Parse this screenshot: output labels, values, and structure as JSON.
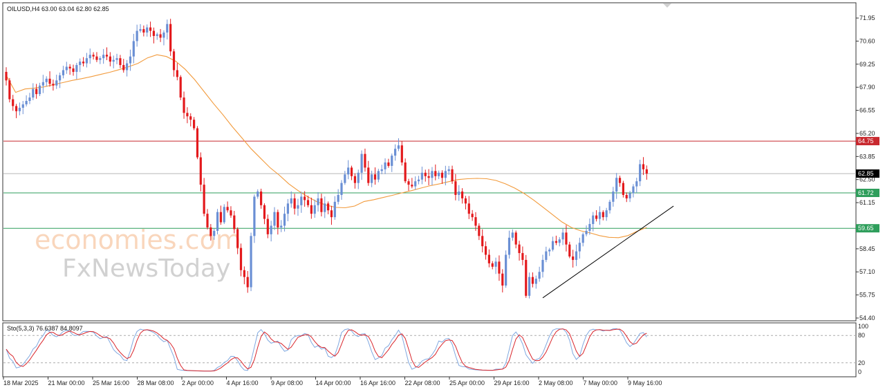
{
  "chart_data": {
    "type": "candlestick",
    "symbol_info": "OILUSD,H4  63.00 63.04 62.80 62.85",
    "ohlc_last": {
      "open": 63.0,
      "high": 63.04,
      "low": 62.8,
      "close": 62.85
    },
    "price_ticks": [
      "71.95",
      "70.60",
      "69.25",
      "67.90",
      "66.55",
      "65.20",
      "63.85",
      "62.50",
      "61.15",
      "58.45",
      "57.10",
      "55.75",
      "54.40"
    ],
    "ylim": [
      54.4,
      72.6
    ],
    "x_labels": [
      "18 Mar 2025",
      "21 Mar 00:00",
      "25 Mar 16:00",
      "28 Mar 08:00",
      "2 Apr 00:00",
      "4 Apr 16:00",
      "9 Apr 08:00",
      "14 Apr 00:00",
      "16 Apr 16:00",
      "22 Apr 08:00",
      "25 Apr 00:00",
      "29 Apr 16:00",
      "2 May 08:00",
      "7 May 00:00",
      "9 May 16:00"
    ],
    "levels": [
      {
        "value": 64.75,
        "label": "64.75",
        "color": "#c8282e"
      },
      {
        "value": 61.72,
        "label": "61.72",
        "color": "#2e9e5b"
      },
      {
        "value": 59.65,
        "label": "59.65",
        "color": "#2e9e5b"
      }
    ],
    "current_price": {
      "value": 62.85,
      "label": "62.85"
    },
    "closes": [
      68.3,
      67.2,
      66.8,
      66.5,
      66.7,
      66.9,
      67.1,
      67.3,
      67.8,
      67.5,
      68.0,
      68.2,
      68.4,
      68.1,
      68.0,
      68.3,
      68.6,
      68.9,
      69.1,
      69.0,
      68.8,
      69.2,
      69.4,
      69.3,
      69.6,
      69.8,
      69.7,
      69.5,
      69.6,
      69.8,
      69.7,
      69.4,
      69.5,
      69.6,
      69.2,
      68.9,
      69.3,
      69.7,
      70.6,
      71.2,
      71.3,
      71.1,
      71.4,
      71.2,
      70.9,
      71.0,
      70.8,
      71.1,
      71.6,
      70.0,
      68.9,
      68.5,
      67.3,
      66.4,
      66.2,
      66.0,
      65.5,
      63.8,
      62.2,
      60.5,
      59.7,
      59.2,
      59.5,
      60.6,
      60.0,
      60.9,
      60.7,
      60.4,
      59.6,
      58.5,
      57.2,
      56.8,
      56.2,
      59.2,
      61.5,
      61.8,
      61.0,
      60.2,
      59.3,
      59.8,
      60.6,
      59.7,
      59.8,
      60.5,
      61.1,
      61.4,
      60.8,
      61.0,
      61.5,
      61.3,
      61.0,
      60.5,
      61.0,
      61.4,
      60.6,
      61.1,
      60.7,
      60.3,
      61.2,
      61.6,
      62.3,
      62.8,
      63.2,
      62.7,
      62.3,
      62.9,
      64.0,
      63.2,
      62.3,
      62.8,
      62.5,
      63.0,
      63.1,
      63.5,
      63.3,
      63.9,
      64.3,
      64.5,
      63.5,
      62.4,
      62.2,
      62.1,
      62.4,
      62.5,
      62.9,
      62.7,
      62.6,
      63.0,
      62.7,
      62.9,
      62.6,
      63.0,
      63.1,
      62.4,
      61.6,
      61.8,
      61.4,
      61.1,
      60.5,
      60.3,
      59.8,
      59.2,
      58.6,
      58.1,
      57.6,
      57.4,
      57.7,
      57.0,
      56.3,
      58.1,
      59.1,
      59.4,
      58.7,
      58.2,
      57.8,
      55.7,
      56.8,
      56.4,
      56.7,
      57.1,
      57.8,
      58.3,
      58.4,
      58.9,
      58.8,
      59.0,
      59.4,
      58.7,
      58.0,
      57.8,
      58.3,
      58.8,
      59.3,
      59.5,
      59.9,
      60.4,
      60.2,
      60.6,
      60.3,
      60.7,
      61.2,
      61.8,
      62.6,
      62.3,
      61.6,
      61.4,
      61.7,
      62.1,
      62.4,
      63.4,
      63.1,
      62.85
    ],
    "ema": [
      68.6,
      67.6,
      67.8,
      67.85,
      67.92,
      68.05,
      68.17,
      68.3,
      68.4,
      68.52,
      68.65,
      68.78,
      68.93,
      69.1,
      69.3,
      69.62,
      69.8,
      69.7,
      69.42,
      68.95,
      68.35,
      67.65,
      66.95,
      66.3,
      65.6,
      64.95,
      64.3,
      63.75,
      63.2,
      62.75,
      62.25,
      61.85,
      61.5,
      61.2,
      61.0,
      60.87,
      60.85,
      60.95,
      61.22,
      61.32,
      61.45,
      61.58,
      61.72,
      61.85,
      62.0,
      62.14,
      62.25,
      62.38,
      62.5,
      62.55,
      62.57,
      62.55,
      62.45,
      62.25,
      62.0,
      61.68,
      61.3,
      60.88,
      60.45,
      60.02,
      59.7,
      59.5,
      59.38,
      59.22,
      59.12,
      59.1,
      59.22,
      59.48,
      59.7
    ],
    "stoch": {
      "label": "Sto(5,3,3) 76.6387 84.8097",
      "main": 76.6387,
      "signal": 84.8097,
      "levels": [
        80,
        20
      ],
      "ticks": [
        "100",
        "80",
        "20",
        "0"
      ]
    },
    "trendline": {
      "from": [
        160,
        55.58
      ],
      "to": [
        199,
        60.95
      ]
    },
    "colors": {
      "bull": "#6a8fd4",
      "bear": "#e3191c",
      "ema": "#f29a3b",
      "stoch_main": "#7fa8e0",
      "stoch_signal": "#d9242a",
      "trendline": "#000000"
    }
  },
  "watermark": {
    "line1": "economies.com",
    "line2": "FxNewsToday"
  }
}
